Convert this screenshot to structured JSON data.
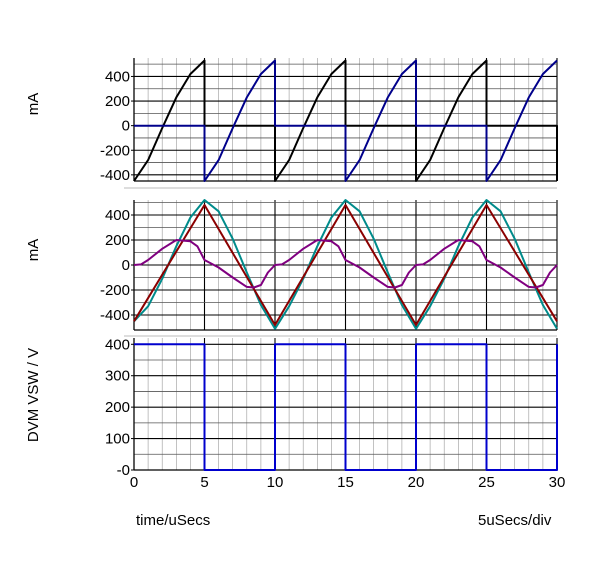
{
  "chart_data": [
    {
      "type": "line",
      "ylabel": "mA",
      "ylim": [
        -450,
        550
      ],
      "yticks": [
        400,
        200,
        0,
        -200,
        -400
      ],
      "xlim": [
        0,
        30
      ],
      "grid": true,
      "series": [
        {
          "color": "#000000",
          "x": [
            0,
            1,
            2,
            3,
            4,
            5,
            5,
            6,
            7,
            8,
            9,
            10,
            10,
            11,
            12,
            13,
            14,
            15,
            15,
            16,
            17,
            18,
            19,
            20,
            20,
            21,
            22,
            23,
            24,
            25,
            25,
            26,
            27,
            28,
            29,
            30,
            30
          ],
          "values": [
            -450,
            -280,
            -20,
            230,
            420,
            530,
            0,
            0,
            0,
            0,
            0,
            0,
            -450,
            -280,
            -20,
            230,
            420,
            530,
            0,
            0,
            0,
            0,
            0,
            0,
            -450,
            -280,
            -20,
            230,
            420,
            530,
            0,
            0,
            0,
            0,
            0,
            0,
            -450
          ]
        },
        {
          "color": "#00008b",
          "x": [
            0,
            1,
            2,
            3,
            4,
            5,
            5,
            6,
            7,
            8,
            9,
            10,
            10,
            11,
            12,
            13,
            14,
            15,
            15,
            16,
            17,
            18,
            19,
            20,
            20,
            21,
            22,
            23,
            24,
            25,
            25,
            26,
            27,
            28,
            29,
            30
          ],
          "values": [
            0,
            0,
            0,
            0,
            0,
            0,
            -450,
            -280,
            -20,
            230,
            420,
            530,
            0,
            0,
            0,
            0,
            0,
            0,
            -450,
            -280,
            -20,
            230,
            420,
            530,
            0,
            0,
            0,
            0,
            0,
            0,
            -450,
            -280,
            -20,
            230,
            420,
            530
          ]
        }
      ]
    },
    {
      "type": "line",
      "ylabel": "mA",
      "ylim": [
        -520,
        520
      ],
      "yticks": [
        400,
        200,
        0,
        -200,
        -400
      ],
      "xlim": [
        0,
        30
      ],
      "grid": true,
      "series": [
        {
          "color": "#008b8b",
          "x": [
            0,
            1,
            2,
            3,
            4,
            5,
            6,
            7,
            8,
            9,
            10,
            11,
            12,
            13,
            14,
            15,
            16,
            17,
            18,
            19,
            20,
            21,
            22,
            23,
            24,
            25,
            26,
            27,
            28,
            29,
            30
          ],
          "values": [
            -450,
            -330,
            -110,
            150,
            380,
            520,
            430,
            210,
            -60,
            -320,
            -510,
            -330,
            -110,
            150,
            380,
            520,
            430,
            210,
            -60,
            -320,
            -510,
            -330,
            -110,
            150,
            380,
            520,
            430,
            210,
            -60,
            -320,
            -510
          ]
        },
        {
          "color": "#8b0000",
          "x": [
            0,
            5,
            10,
            15,
            20,
            25,
            30
          ],
          "values": [
            -450,
            480,
            -480,
            480,
            -480,
            480,
            -450
          ]
        },
        {
          "color": "#800080",
          "x": [
            0,
            0.5,
            1,
            2,
            3,
            4,
            4.5,
            5,
            5.5,
            6,
            7,
            8,
            8.5,
            9,
            9.5,
            10,
            10.5,
            11,
            12,
            13,
            14,
            14.5,
            15,
            15.5,
            16,
            17,
            18,
            18.5,
            19,
            19.5,
            20,
            20.5,
            21,
            22,
            23,
            24,
            24.5,
            25,
            25.5,
            26,
            27,
            28,
            28.5,
            29,
            29.5,
            30
          ],
          "values": [
            0,
            5,
            40,
            130,
            200,
            190,
            150,
            40,
            10,
            -20,
            -100,
            -175,
            -180,
            -160,
            -60,
            0,
            5,
            40,
            130,
            200,
            190,
            150,
            40,
            10,
            -20,
            -100,
            -175,
            -180,
            -160,
            -60,
            0,
            5,
            40,
            130,
            200,
            190,
            150,
            40,
            10,
            -20,
            -100,
            -175,
            -180,
            -160,
            -60,
            0
          ]
        }
      ]
    },
    {
      "type": "line",
      "ylabel": "DVM VSW / V",
      "ylim": [
        0,
        420
      ],
      "yticks": [
        400,
        300,
        200,
        100,
        0
      ],
      "ytick_labels": [
        "400",
        "300",
        "200",
        "100",
        "-0"
      ],
      "xlim": [
        0,
        30
      ],
      "xticks": [
        0,
        5,
        10,
        15,
        20,
        25,
        30
      ],
      "xtick_labels": [
        "0",
        "5",
        "10",
        "15",
        "20",
        "25",
        "30"
      ],
      "grid": true,
      "series": [
        {
          "color": "#0000cd",
          "x": [
            0,
            5,
            5,
            10,
            10,
            15,
            15,
            20,
            20,
            25,
            25,
            30,
            30
          ],
          "values": [
            400,
            400,
            0,
            0,
            400,
            400,
            0,
            0,
            400,
            400,
            0,
            0,
            400
          ]
        }
      ]
    }
  ],
  "footer": {
    "x_axis_label": "time/uSecs",
    "scale_label": "5uSecs/div"
  }
}
